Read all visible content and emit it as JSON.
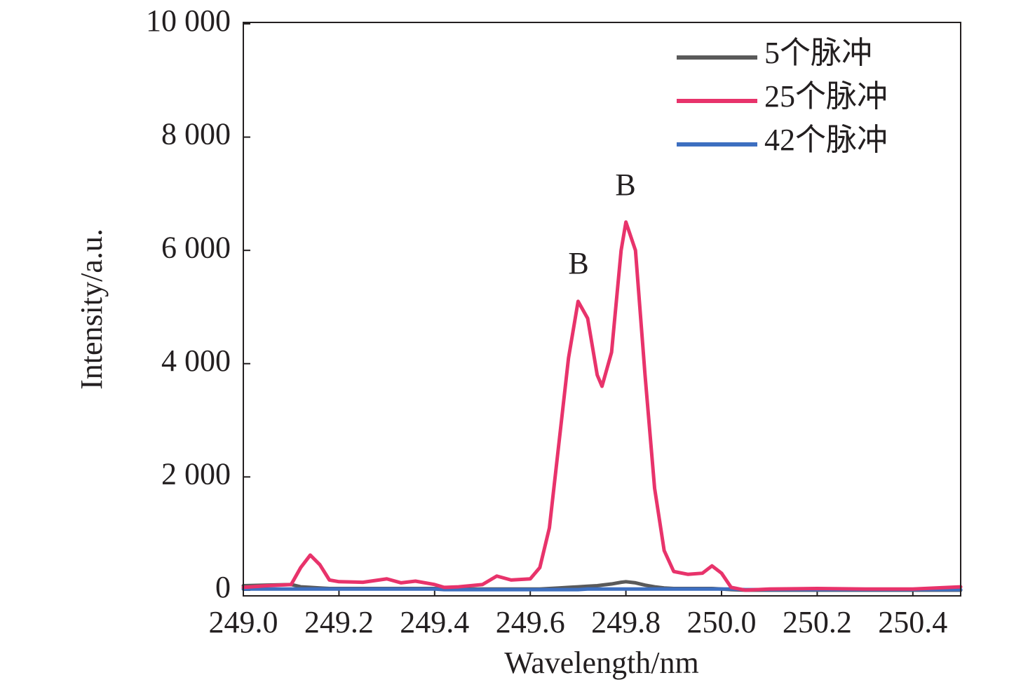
{
  "chart_data": {
    "type": "line",
    "x_label": "Wavelength/nm",
    "y_label": "Intensity/a.u.",
    "xlim": [
      249.0,
      250.5
    ],
    "xticks": [
      {
        "value": 249.0,
        "label": "249.0"
      },
      249.2,
      249.4,
      249.6,
      249.8,
      {
        "value": 250.0,
        "label": "250.0"
      },
      250.2,
      250.4
    ],
    "ylim": [
      -100,
      10000
    ],
    "yticks": [
      0,
      {
        "value": 2000,
        "label": "2 000"
      },
      {
        "value": 4000,
        "label": "4 000"
      },
      {
        "value": 6000,
        "label": "6 000"
      },
      {
        "value": 8000,
        "label": "8 000"
      },
      {
        "value": 10000,
        "label": "10 000"
      }
    ],
    "grid": false,
    "legend": "upper right",
    "x": [
      249.0,
      249.05,
      249.1,
      249.12,
      249.14,
      249.16,
      249.18,
      249.2,
      249.25,
      249.3,
      249.33,
      249.36,
      249.4,
      249.42,
      249.45,
      249.5,
      249.53,
      249.56,
      249.6,
      249.62,
      249.64,
      249.66,
      249.68,
      249.7,
      249.72,
      249.74,
      249.75,
      249.77,
      249.79,
      249.8,
      249.82,
      249.84,
      249.86,
      249.88,
      249.9,
      249.93,
      249.96,
      249.98,
      250.0,
      250.02,
      250.05,
      250.1,
      250.2,
      250.3,
      250.4,
      250.5
    ],
    "series": [
      {
        "name": "5个脉冲",
        "color": "#5a5a5a",
        "values": [
          80,
          90,
          100,
          60,
          50,
          40,
          30,
          30,
          30,
          30,
          30,
          30,
          30,
          20,
          20,
          20,
          20,
          20,
          20,
          20,
          30,
          40,
          50,
          60,
          70,
          80,
          90,
          110,
          140,
          150,
          130,
          90,
          60,
          40,
          30,
          30,
          30,
          30,
          20,
          10,
          0,
          0,
          0,
          0,
          0,
          0
        ]
      },
      {
        "name": "25个脉冲",
        "color": "#e8336b",
        "values": [
          50,
          80,
          100,
          400,
          620,
          450,
          180,
          150,
          140,
          200,
          130,
          160,
          100,
          50,
          60,
          100,
          250,
          180,
          200,
          400,
          1100,
          2600,
          4100,
          5100,
          4800,
          3800,
          3600,
          4200,
          6000,
          6500,
          6000,
          3800,
          1800,
          700,
          330,
          280,
          300,
          430,
          300,
          50,
          0,
          20,
          30,
          20,
          20,
          60
        ]
      },
      {
        "name": "42个脉冲",
        "color": "#3d6fc0",
        "values": [
          20,
          20,
          20,
          20,
          20,
          20,
          20,
          20,
          20,
          20,
          20,
          20,
          20,
          10,
          10,
          10,
          10,
          10,
          10,
          10,
          10,
          10,
          10,
          10,
          20,
          20,
          20,
          20,
          20,
          20,
          20,
          20,
          20,
          20,
          20,
          20,
          20,
          20,
          20,
          20,
          10,
          10,
          10,
          10,
          10,
          10
        ]
      }
    ],
    "annotations": [
      {
        "text": "B"
      },
      {
        "text": "B"
      }
    ]
  }
}
